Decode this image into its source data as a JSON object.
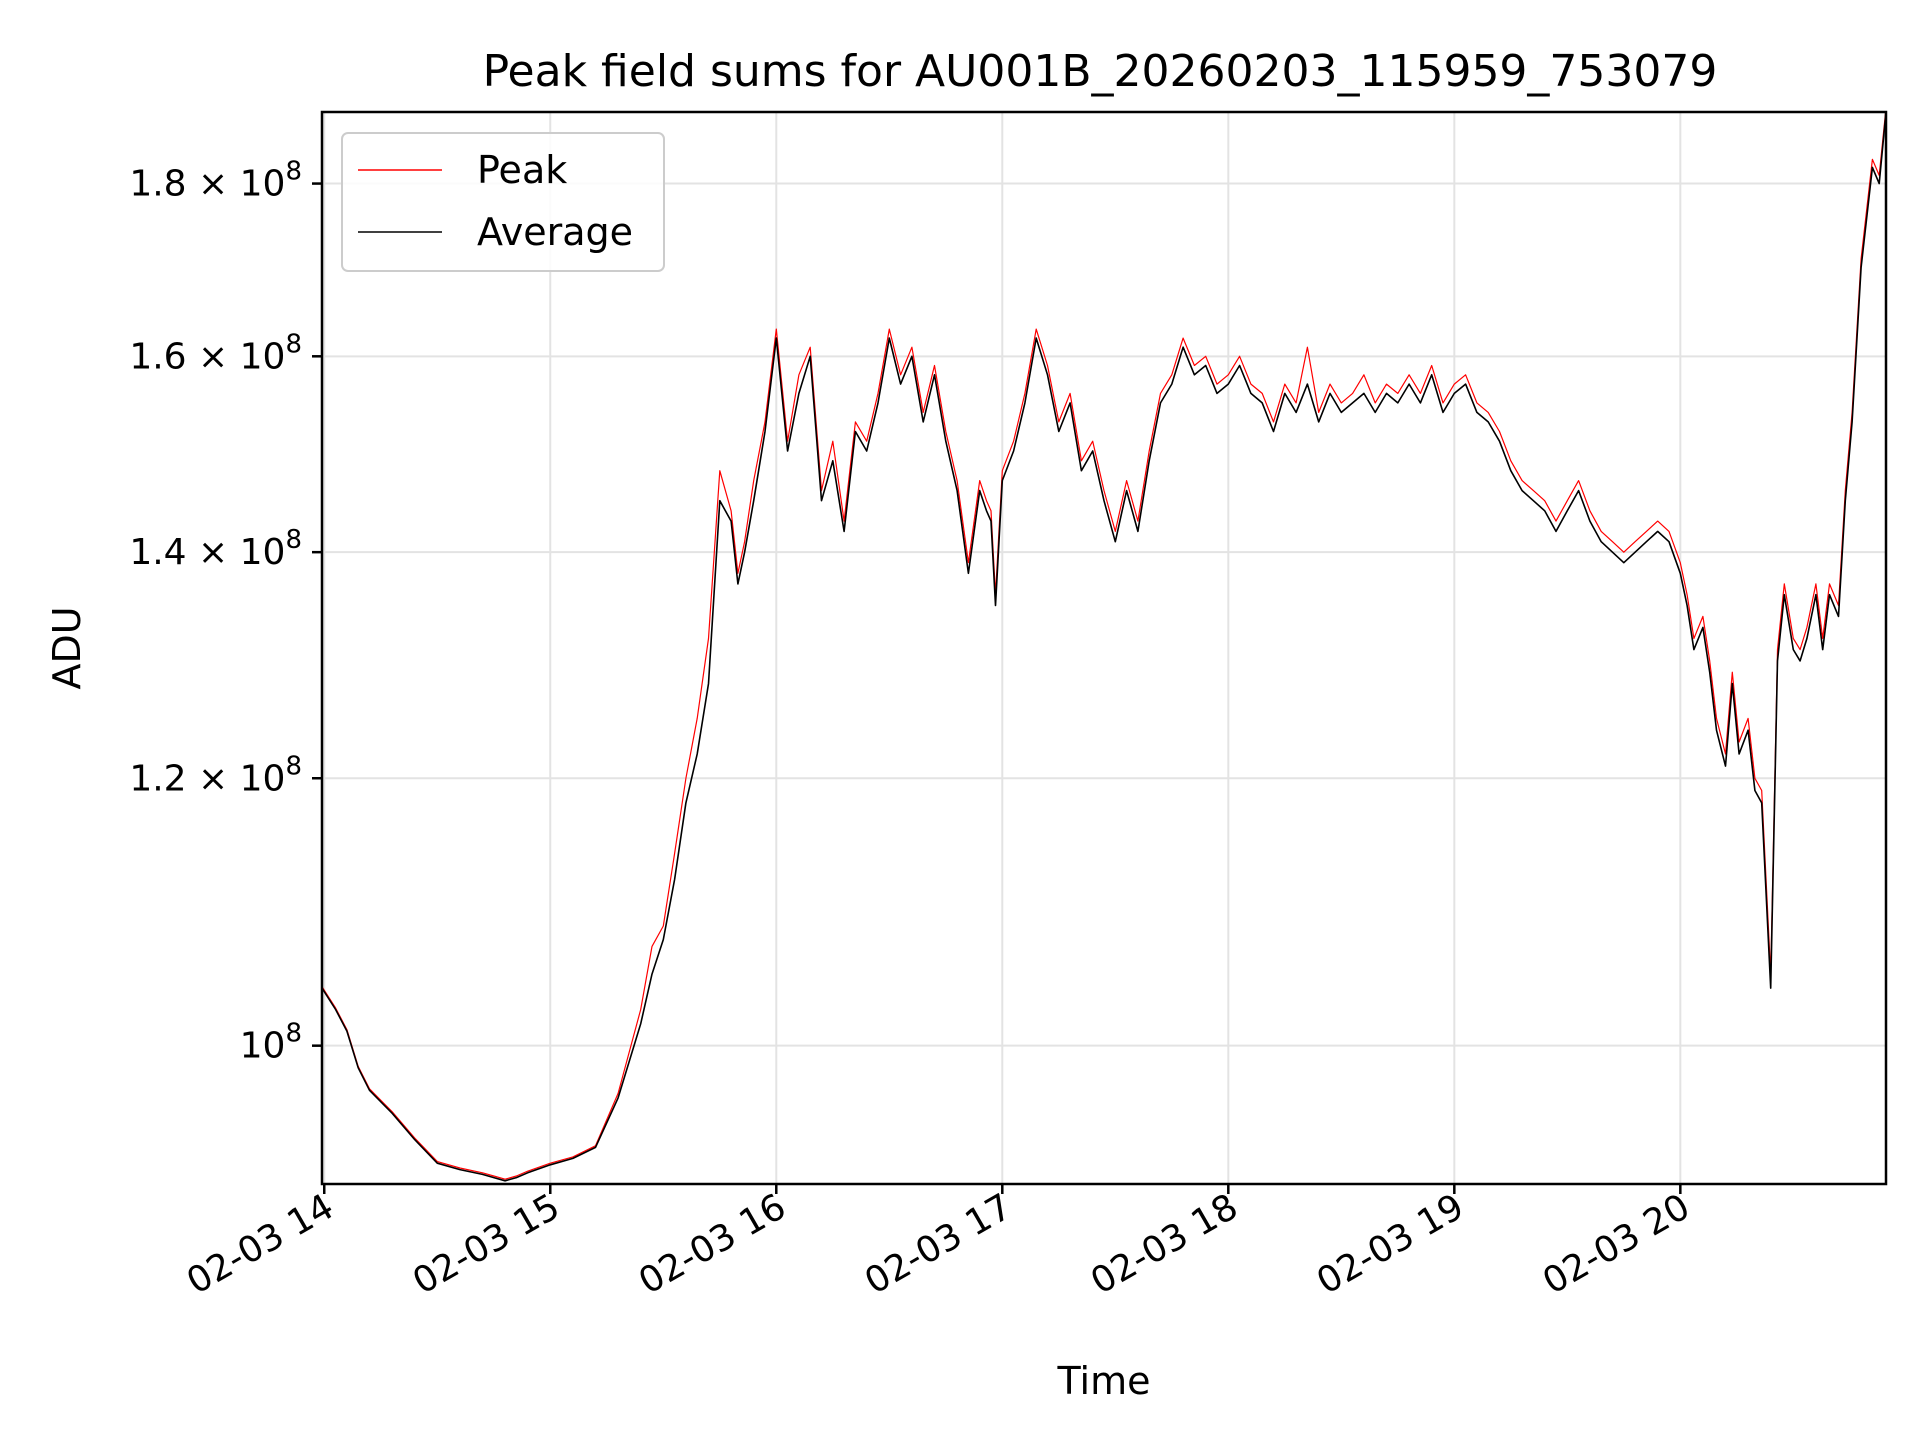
{
  "chart_data": {
    "type": "line",
    "title": "Peak field sums for AU001B_20260203_115959_753079",
    "xlabel": "Time",
    "ylabel": "ADU",
    "yscale": "log",
    "grid": true,
    "legend_position": "top-left",
    "xlim": [
      13.99,
      20.91
    ],
    "ylim": [
      91000000,
      189000000
    ],
    "x_ticks": [
      {
        "value": 14,
        "label": "02-03 14"
      },
      {
        "value": 15,
        "label": "02-03 15"
      },
      {
        "value": 16,
        "label": "02-03 16"
      },
      {
        "value": 17,
        "label": "02-03 17"
      },
      {
        "value": 18,
        "label": "02-03 18"
      },
      {
        "value": 19,
        "label": "02-03 19"
      },
      {
        "value": 20,
        "label": "02-03 20"
      }
    ],
    "y_ticks": [
      {
        "value": 100000000,
        "base": "10",
        "exp": "8"
      },
      {
        "value": 120000000,
        "base": "1.2 × 10",
        "exp": "8"
      },
      {
        "value": 140000000,
        "base": "1.4 × 10",
        "exp": "8"
      },
      {
        "value": 160000000,
        "base": "1.6 × 10",
        "exp": "8"
      },
      {
        "value": 180000000,
        "base": "1.8 × 10",
        "exp": "8"
      }
    ],
    "series": [
      {
        "name": "Peak",
        "color": "#ff0000",
        "width": 1.2
      },
      {
        "name": "Average",
        "color": "#000000",
        "width": 1.6
      }
    ],
    "x": [
      13.99,
      14.05,
      14.1,
      14.15,
      14.2,
      14.3,
      14.4,
      14.5,
      14.6,
      14.7,
      14.75,
      14.8,
      14.85,
      14.9,
      15.0,
      15.1,
      15.2,
      15.3,
      15.4,
      15.45,
      15.5,
      15.55,
      15.6,
      15.65,
      15.7,
      15.75,
      15.8,
      15.83,
      15.86,
      15.9,
      15.95,
      16.0,
      16.05,
      16.1,
      16.15,
      16.2,
      16.25,
      16.3,
      16.35,
      16.4,
      16.45,
      16.5,
      16.55,
      16.6,
      16.65,
      16.7,
      16.75,
      16.8,
      16.85,
      16.9,
      16.93,
      16.95,
      16.97,
      17.0,
      17.05,
      17.1,
      17.15,
      17.2,
      17.25,
      17.3,
      17.35,
      17.4,
      17.45,
      17.5,
      17.55,
      17.6,
      17.65,
      17.7,
      17.75,
      17.8,
      17.85,
      17.9,
      17.95,
      18.0,
      18.05,
      18.1,
      18.15,
      18.2,
      18.25,
      18.3,
      18.35,
      18.4,
      18.45,
      18.5,
      18.55,
      18.6,
      18.65,
      18.7,
      18.75,
      18.8,
      18.85,
      18.9,
      18.95,
      19.0,
      19.05,
      19.1,
      19.15,
      19.2,
      19.25,
      19.3,
      19.35,
      19.4,
      19.45,
      19.5,
      19.55,
      19.6,
      19.65,
      19.7,
      19.75,
      19.8,
      19.85,
      19.9,
      19.95,
      20.0,
      20.03,
      20.06,
      20.1,
      20.13,
      20.16,
      20.2,
      20.23,
      20.26,
      20.3,
      20.33,
      20.36,
      20.4,
      20.43,
      20.46,
      20.5,
      20.53,
      20.56,
      20.6,
      20.63,
      20.66,
      20.7,
      20.73,
      20.76,
      20.8,
      20.85,
      20.88,
      20.91
    ],
    "average": [
      104000000,
      102500000,
      101000000,
      98500000,
      97000000,
      95500000,
      93800000,
      92300000,
      91900000,
      91600000,
      91400000,
      91200000,
      91400000,
      91700000,
      92200000,
      92600000,
      93300000,
      96500000,
      101500000,
      105000000,
      107500000,
      112000000,
      118000000,
      122000000,
      128000000,
      145000000,
      143000000,
      137000000,
      140000000,
      145000000,
      152000000,
      162000000,
      150000000,
      156000000,
      160000000,
      145000000,
      149000000,
      142000000,
      152000000,
      150000000,
      155000000,
      162000000,
      157000000,
      160000000,
      153000000,
      158000000,
      151000000,
      146000000,
      138000000,
      146000000,
      144000000,
      143000000,
      135000000,
      147000000,
      150000000,
      155000000,
      162000000,
      158000000,
      152000000,
      155000000,
      148000000,
      150000000,
      145000000,
      141000000,
      146000000,
      142000000,
      149000000,
      155000000,
      157000000,
      161000000,
      158000000,
      159000000,
      156000000,
      157000000,
      159000000,
      156000000,
      155000000,
      152000000,
      156000000,
      154000000,
      157000000,
      153000000,
      156000000,
      154000000,
      155000000,
      156000000,
      154000000,
      156000000,
      155000000,
      157000000,
      155000000,
      158000000,
      154000000,
      156000000,
      157000000,
      154000000,
      153000000,
      151000000,
      148000000,
      146000000,
      145000000,
      144000000,
      142000000,
      144000000,
      146000000,
      143000000,
      141000000,
      140000000,
      139000000,
      140000000,
      141000000,
      142000000,
      141000000,
      138000000,
      135000000,
      131000000,
      133000000,
      129000000,
      124000000,
      121000000,
      128000000,
      122000000,
      124000000,
      119000000,
      118000000,
      104000000,
      130000000,
      136000000,
      131000000,
      130000000,
      132000000,
      136000000,
      131000000,
      136000000,
      134000000,
      145000000,
      153000000,
      170000000,
      182000000,
      180000000,
      189000000
    ],
    "peak": [
      104100000,
      102600000,
      101100000,
      98600000,
      97100000,
      95600000,
      93900000,
      92400000,
      92000000,
      91700000,
      91500000,
      91300000,
      91500000,
      91800000,
      92300000,
      92700000,
      93400000,
      96800000,
      102500000,
      107000000,
      108500000,
      114000000,
      120000000,
      125000000,
      132000000,
      148000000,
      144000000,
      138000000,
      141000000,
      147000000,
      153000000,
      163000000,
      151000000,
      158000000,
      161000000,
      146000000,
      151000000,
      143000000,
      153000000,
      151000000,
      156000000,
      163000000,
      158000000,
      161000000,
      154000000,
      159000000,
      152000000,
      147000000,
      139000000,
      147000000,
      145000000,
      144000000,
      136000000,
      148000000,
      151000000,
      156000000,
      163000000,
      159000000,
      153000000,
      156000000,
      149000000,
      151000000,
      146000000,
      142000000,
      147000000,
      143000000,
      150000000,
      156000000,
      158000000,
      162000000,
      159000000,
      160000000,
      157000000,
      158000000,
      160000000,
      157000000,
      156000000,
      153000000,
      157000000,
      155000000,
      161000000,
      154000000,
      157000000,
      155000000,
      156000000,
      158000000,
      155000000,
      157000000,
      156000000,
      158000000,
      156000000,
      159000000,
      155000000,
      157000000,
      158000000,
      155000000,
      154000000,
      152000000,
      149000000,
      147000000,
      146000000,
      145000000,
      143000000,
      145000000,
      147000000,
      144000000,
      142000000,
      141000000,
      140000000,
      141000000,
      142000000,
      143000000,
      142000000,
      139000000,
      136000000,
      132000000,
      134000000,
      130000000,
      125000000,
      122000000,
      129000000,
      123000000,
      125000000,
      120000000,
      119000000,
      105000000,
      131000000,
      137000000,
      132000000,
      131000000,
      133000000,
      137000000,
      132000000,
      137000000,
      135000000,
      146000000,
      154000000,
      171000000,
      183000000,
      181000000,
      189500000
    ]
  }
}
